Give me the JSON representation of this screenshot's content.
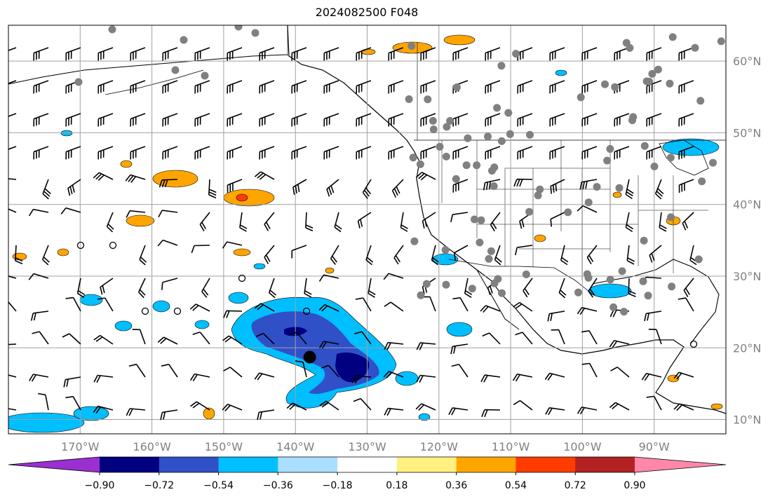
{
  "title": "2024082500 F048",
  "map": {
    "lon_range": [
      -180,
      -80
    ],
    "lat_range": [
      8,
      65
    ],
    "grid_lons": [
      -170,
      -160,
      -150,
      -140,
      -130,
      -120,
      -110,
      -100,
      -90
    ],
    "grid_lats": [
      10,
      20,
      30,
      40,
      50,
      60
    ],
    "lon_labels": [
      "170°W",
      "160°W",
      "150°W",
      "140°W",
      "130°W",
      "120°W",
      "110°W",
      "100°W",
      "90°W"
    ],
    "lat_labels": [
      "10°N",
      "20°N",
      "30°N",
      "40°N",
      "50°N",
      "60°N"
    ],
    "grid_color": "#a0a0a0",
    "storm_center": {
      "lon": -138.0,
      "lat": 18.7
    }
  },
  "colorbar": {
    "colors": [
      "#9a30d0",
      "#000080",
      "#3050c8",
      "#00bfff",
      "#aadfff",
      "#ffffff",
      "#fff080",
      "#ffa500",
      "#ff3c00",
      "#b22222",
      "#ff88aa"
    ],
    "tick_labels": [
      "−0.90",
      "−0.72",
      "−0.54",
      "−0.36",
      "−0.18",
      "0.18",
      "0.36",
      "0.54",
      "0.72",
      "0.90"
    ]
  },
  "field_colors": {
    "neg_light": "#00bfff",
    "neg_mid": "#3050c8",
    "neg_dark": "#000080",
    "pos_light": "#ffa500",
    "pos_strong": "#ff3c00",
    "obs_marker": "#808080"
  }
}
